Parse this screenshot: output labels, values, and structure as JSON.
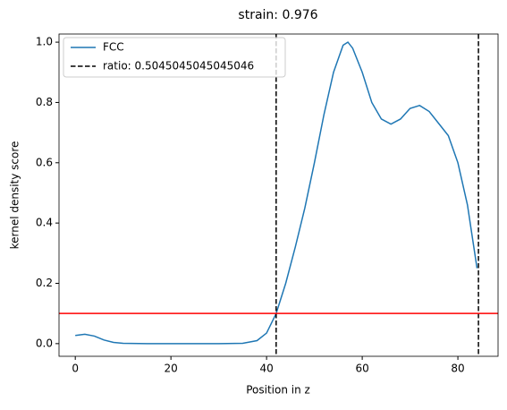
{
  "chart_data": {
    "type": "line",
    "title": "strain: 0.976",
    "x_label": "Position in z",
    "y_label": "kernel density score",
    "x": [
      0,
      2,
      4,
      6,
      8,
      10,
      15,
      20,
      25,
      30,
      35,
      38,
      40,
      42,
      44,
      46,
      48,
      50,
      52,
      54,
      56,
      57,
      58,
      60,
      62,
      64,
      66,
      68,
      70,
      72,
      74,
      76,
      78,
      80,
      82,
      84
    ],
    "series": [
      {
        "name": "FCC",
        "color": "#1f77b4",
        "values": [
          0.027,
          0.031,
          0.025,
          0.012,
          0.004,
          0.001,
          0,
          0,
          0,
          0,
          0.001,
          0.01,
          0.035,
          0.1,
          0.2,
          0.32,
          0.45,
          0.6,
          0.76,
          0.9,
          0.99,
          1.0,
          0.98,
          0.9,
          0.8,
          0.745,
          0.728,
          0.745,
          0.78,
          0.79,
          0.77,
          0.73,
          0.69,
          0.6,
          0.46,
          0.25
        ]
      }
    ],
    "vlines": {
      "name": "ratio: 0.5045045045045046",
      "color": "#000000",
      "values": [
        42,
        84.3
      ]
    },
    "hline": {
      "value": 0.1,
      "color": "#ff0000"
    },
    "xlim": [
      -3.4,
      88.4
    ],
    "ylim": [
      -0.042,
      1.027
    ],
    "xticks": [
      0,
      20,
      40,
      60,
      80
    ],
    "yticks": [
      {
        "value": 0,
        "label": "0.0"
      },
      0.2,
      0.4,
      0.6,
      0.8,
      {
        "value": 1,
        "label": "1.0"
      }
    ],
    "legend": "upper left"
  }
}
